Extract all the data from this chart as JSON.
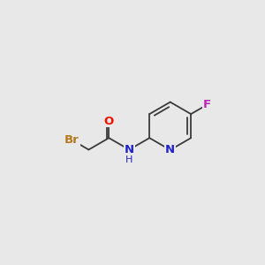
{
  "background_color": "#e8e8e8",
  "bond_color": "#3a3a3a",
  "bond_width": 1.3,
  "atoms": {
    "Br": {
      "color": "#b87820",
      "fontsize": 9.5,
      "fontweight": "bold"
    },
    "O": {
      "color": "#ee1100",
      "fontsize": 9.5,
      "fontweight": "bold"
    },
    "N": {
      "color": "#2222cc",
      "fontsize": 9.5,
      "fontweight": "bold"
    },
    "H": {
      "color": "#2222cc",
      "fontsize": 8.0,
      "fontweight": "normal"
    },
    "F": {
      "color": "#bb22bb",
      "fontsize": 9.5,
      "fontweight": "bold"
    }
  },
  "figsize": [
    3.0,
    3.0
  ],
  "dpi": 100,
  "xlim": [
    0,
    10
  ],
  "ylim": [
    0,
    10
  ]
}
